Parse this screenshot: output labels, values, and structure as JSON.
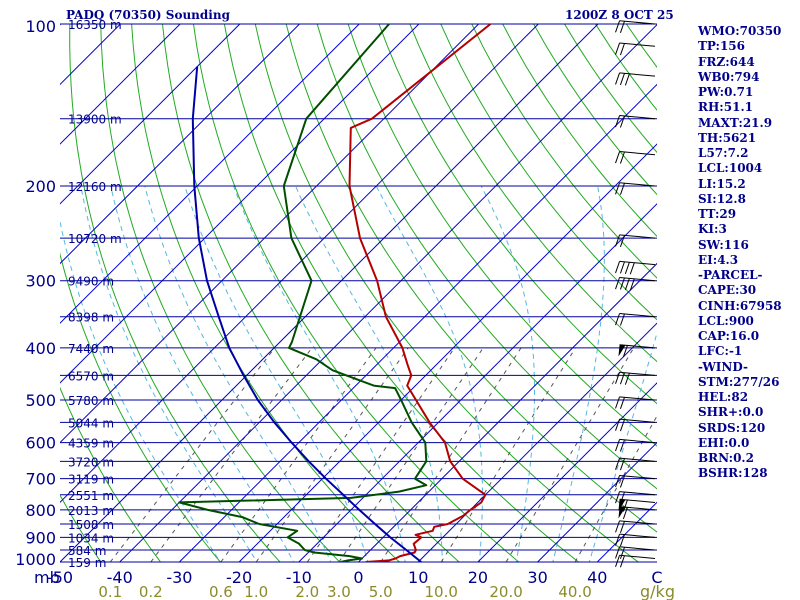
{
  "colors": {
    "isobar": "#0000a0",
    "isotherm": "#0000cd",
    "dry_adiabat": "#22aa22",
    "moist_adiabat": "#55b8e0",
    "mixing_ratio": "#555555",
    "temperature": "#b40000",
    "dewpoint": "#004d00",
    "parcel": "#0000a8",
    "label_text": "#00008b",
    "mixing_ratio_labels": "#8b8b2a"
  },
  "header": {
    "title": "PADQ (70350) Sounding",
    "timestamp": "1200Z  8 OCT 25"
  },
  "side_panel": [
    "WMO:70350",
    "TP:156",
    "FRZ:644",
    "WB0:794",
    "PW:0.71",
    "RH:51.1",
    "MAXT:21.9",
    "TH:5621",
    "L57:7.2",
    "LCL:1004",
    "LI:15.2",
    "SI:12.8",
    "TT:29",
    "KI:3",
    "SW:116",
    "EI:4.3",
    "-PARCEL-",
    "CAPE:30",
    "CINH:67958",
    "LCL:900",
    "CAP:16.0",
    "LFC:-1",
    "-WIND-",
    "STM:277/26",
    "HEL:82",
    "SHR+:0.0",
    "SRDS:120",
    "EHI:0.0",
    "BRN:0.2",
    "BSHR:128"
  ],
  "chart_data": {
    "type": "skew-t log-p",
    "ylabel_unit": "mb",
    "xlabel_unit": "C",
    "mixing_ratio_unit": "g/kg",
    "pressure_axis": {
      "range_mb": [
        1000,
        100
      ],
      "log_scale": true,
      "tick_labels": [
        "100",
        "200",
        "300",
        "400",
        "500",
        "600",
        "700",
        "800",
        "900",
        "1000"
      ]
    },
    "temperature_axis": {
      "range_c": [
        -50,
        50
      ],
      "tick_values": [
        -50,
        -40,
        -30,
        -20,
        -10,
        0,
        10,
        20,
        30,
        40,
        50
      ],
      "tick_labels": [
        "-50",
        "-40",
        "-30",
        "-20",
        "-10",
        "0",
        "10",
        "20",
        "30",
        "40",
        "C"
      ]
    },
    "isobars_mb": [
      1000,
      950,
      900,
      850,
      800,
      750,
      700,
      650,
      600,
      550,
      500,
      450,
      400,
      350,
      300,
      250,
      200,
      150,
      100
    ],
    "height_labels": [
      {
        "p": 1000,
        "label": "159 m"
      },
      {
        "p": 950,
        "label": "584 m"
      },
      {
        "p": 900,
        "label": "1034 m"
      },
      {
        "p": 850,
        "label": "1508 m"
      },
      {
        "p": 800,
        "label": "2013 m"
      },
      {
        "p": 750,
        "label": "2551 m"
      },
      {
        "p": 700,
        "label": "3119 m"
      },
      {
        "p": 650,
        "label": "3720 m"
      },
      {
        "p": 600,
        "label": "4359 m"
      },
      {
        "p": 550,
        "label": "5044 m"
      },
      {
        "p": 500,
        "label": "5780 m"
      },
      {
        "p": 450,
        "label": "6570 m"
      },
      {
        "p": 400,
        "label": "7440 m"
      },
      {
        "p": 350,
        "label": "8398 m"
      },
      {
        "p": 300,
        "label": "9490 m"
      },
      {
        "p": 250,
        "label": "10720 m"
      },
      {
        "p": 200,
        "label": "12160 m"
      },
      {
        "p": 150,
        "label": "13900 m"
      },
      {
        "p": 100,
        "label": "16350 m"
      }
    ],
    "mixing_ratio_labels": [
      {
        "w": 0.1,
        "label": "0.1"
      },
      {
        "w": 0.2,
        "label": "0.2"
      },
      {
        "w": 0.6,
        "label": "0.6"
      },
      {
        "w": 1.0,
        "label": "1.0"
      },
      {
        "w": 2.0,
        "label": "2.0"
      },
      {
        "w": 3.0,
        "label": "3.0"
      },
      {
        "w": 5.0,
        "label": "5.0"
      },
      {
        "w": 10.0,
        "label": "10.0"
      },
      {
        "w": 20.0,
        "label": "20.0"
      },
      {
        "w": 40.0,
        "label": "40.0"
      }
    ],
    "series": [
      {
        "kind": "temperature",
        "points": [
          {
            "p": 1000,
            "t": 1.2
          },
          {
            "p": 993,
            "t": 4.8
          },
          {
            "p": 985,
            "t": 5.6
          },
          {
            "p": 975,
            "t": 6.0
          },
          {
            "p": 960,
            "t": 7.8
          },
          {
            "p": 950,
            "t": 7.6
          },
          {
            "p": 925,
            "t": 6.2
          },
          {
            "p": 900,
            "t": 6.4
          },
          {
            "p": 890,
            "t": 5.0
          },
          {
            "p": 875,
            "t": 7.2
          },
          {
            "p": 860,
            "t": 6.8
          },
          {
            "p": 850,
            "t": 8.6
          },
          {
            "p": 820,
            "t": 9.8
          },
          {
            "p": 800,
            "t": 10.0
          },
          {
            "p": 775,
            "t": 10.6
          },
          {
            "p": 750,
            "t": 10.0
          },
          {
            "p": 700,
            "t": 3.5
          },
          {
            "p": 650,
            "t": -1.5
          },
          {
            "p": 600,
            "t": -5.5
          },
          {
            "p": 550,
            "t": -11.5
          },
          {
            "p": 500,
            "t": -17.5
          },
          {
            "p": 470,
            "t": -21.4
          },
          {
            "p": 450,
            "t": -22.4
          },
          {
            "p": 430,
            "t": -24.8
          },
          {
            "p": 400,
            "t": -28.5
          },
          {
            "p": 350,
            "t": -36.5
          },
          {
            "p": 300,
            "t": -44.0
          },
          {
            "p": 250,
            "t": -54.0
          },
          {
            "p": 200,
            "t": -64.5
          },
          {
            "p": 156,
            "t": -74.0
          },
          {
            "p": 150,
            "t": -72.0
          },
          {
            "p": 100,
            "t": -68.0
          }
        ]
      },
      {
        "kind": "dewpoint",
        "points": [
          {
            "p": 1000,
            "t": -3.0
          },
          {
            "p": 993,
            "t": -2.0
          },
          {
            "p": 985,
            "t": 0.0
          },
          {
            "p": 975,
            "t": -2.5
          },
          {
            "p": 960,
            "t": -9.0
          },
          {
            "p": 950,
            "t": -11.0
          },
          {
            "p": 925,
            "t": -13.0
          },
          {
            "p": 900,
            "t": -16.0
          },
          {
            "p": 875,
            "t": -15.5
          },
          {
            "p": 850,
            "t": -23.0
          },
          {
            "p": 825,
            "t": -27.0
          },
          {
            "p": 800,
            "t": -34.0
          },
          {
            "p": 775,
            "t": -40.0
          },
          {
            "p": 760,
            "t": -12.0
          },
          {
            "p": 740,
            "t": -5.0
          },
          {
            "p": 720,
            "t": -1.5
          },
          {
            "p": 700,
            "t": -4.5
          },
          {
            "p": 650,
            "t": -5.5
          },
          {
            "p": 600,
            "t": -8.8
          },
          {
            "p": 550,
            "t": -14.5
          },
          {
            "p": 500,
            "t": -20.0
          },
          {
            "p": 475,
            "t": -23.0
          },
          {
            "p": 470,
            "t": -27.0
          },
          {
            "p": 440,
            "t": -36.5
          },
          {
            "p": 420,
            "t": -41.0
          },
          {
            "p": 400,
            "t": -47.5
          },
          {
            "p": 390,
            "t": -48.0
          },
          {
            "p": 300,
            "t": -55.0
          },
          {
            "p": 250,
            "t": -65.5
          },
          {
            "p": 200,
            "t": -75.5
          },
          {
            "p": 150,
            "t": -83.0
          },
          {
            "p": 100,
            "t": -85.0
          }
        ]
      },
      {
        "kind": "parcel",
        "points": [
          {
            "p": 1000,
            "t": 10.5
          },
          {
            "p": 950,
            "t": 6.0
          },
          {
            "p": 900,
            "t": 1.2
          },
          {
            "p": 850,
            "t": -3.6
          },
          {
            "p": 800,
            "t": -8.6
          },
          {
            "p": 750,
            "t": -13.8
          },
          {
            "p": 700,
            "t": -19.4
          },
          {
            "p": 650,
            "t": -25.2
          },
          {
            "p": 600,
            "t": -31.2
          },
          {
            "p": 550,
            "t": -37.5
          },
          {
            "p": 500,
            "t": -44.0
          },
          {
            "p": 450,
            "t": -50.5
          },
          {
            "p": 400,
            "t": -57.5
          },
          {
            "p": 350,
            "t": -64.5
          },
          {
            "p": 300,
            "t": -72.5
          },
          {
            "p": 250,
            "t": -81.0
          },
          {
            "p": 200,
            "t": -90.5
          },
          {
            "p": 150,
            "t": -102.0
          },
          {
            "p": 120,
            "t": -110.0
          }
        ]
      }
    ],
    "wind_barbs": [
      {
        "p": 985,
        "dir": 80,
        "kt": 20
      },
      {
        "p": 950,
        "dir": 80,
        "kt": 20
      },
      {
        "p": 900,
        "dir": 80,
        "kt": 20
      },
      {
        "p": 850,
        "dir": 80,
        "kt": 20
      },
      {
        "p": 800,
        "dir": 80,
        "kt": 60
      },
      {
        "p": 775,
        "dir": 80,
        "kt": 60
      },
      {
        "p": 750,
        "dir": 80,
        "kt": 20
      },
      {
        "p": 700,
        "dir": 80,
        "kt": 20
      },
      {
        "p": 650,
        "dir": 80,
        "kt": 20
      },
      {
        "p": 600,
        "dir": 80,
        "kt": 20
      },
      {
        "p": 550,
        "dir": 80,
        "kt": 20
      },
      {
        "p": 500,
        "dir": 80,
        "kt": 20
      },
      {
        "p": 450,
        "dir": 80,
        "kt": 30
      },
      {
        "p": 400,
        "dir": 80,
        "kt": 60
      },
      {
        "p": 350,
        "dir": 80,
        "kt": 20
      },
      {
        "p": 300,
        "dir": 80,
        "kt": 40
      },
      {
        "p": 280,
        "dir": 80,
        "kt": 40
      },
      {
        "p": 250,
        "dir": 80,
        "kt": 20
      },
      {
        "p": 200,
        "dir": 80,
        "kt": 20
      },
      {
        "p": 175,
        "dir": 80,
        "kt": 20
      },
      {
        "p": 150,
        "dir": 80,
        "kt": 20
      },
      {
        "p": 125,
        "dir": 80,
        "kt": 30
      },
      {
        "p": 110,
        "dir": 80,
        "kt": 20
      },
      {
        "p": 100,
        "dir": 80,
        "kt": 20
      }
    ]
  }
}
